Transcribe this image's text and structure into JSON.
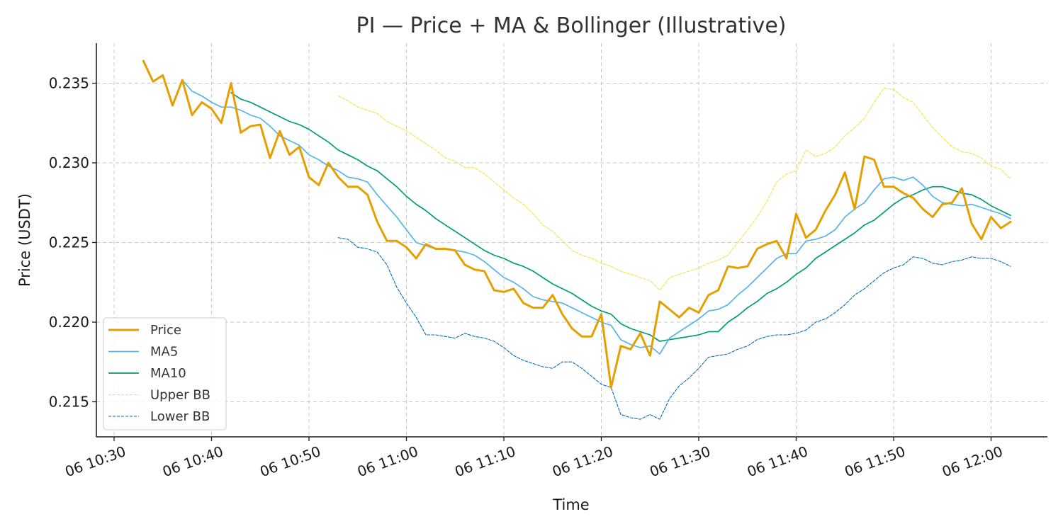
{
  "chart_data": {
    "type": "line",
    "title": "PI — Price + MA & Bollinger (Illustrative)",
    "xlabel": "Time",
    "ylabel": "Price (USDT)",
    "x_start": "06 10:30",
    "x_end": "06 12:00",
    "x_step_minutes": 1,
    "first_point": "06 10:33",
    "x_ticks": [
      "06 10:30",
      "06 10:40",
      "06 10:50",
      "06 11:00",
      "06 11:10",
      "06 11:20",
      "06 11:30",
      "06 11:40",
      "06 11:50",
      "06 12:00"
    ],
    "y_ticks": [
      "0.215",
      "0.220",
      "0.225",
      "0.230",
      "0.235"
    ],
    "ylim": [
      0.2128,
      0.2375
    ],
    "grid": true,
    "legend_position": "lower-left",
    "series": [
      {
        "name": "Price",
        "color": "#E69F00",
        "style": "solid-thick",
        "values": [
          0.2364,
          0.2351,
          0.2355,
          0.2336,
          0.2352,
          0.233,
          0.2338,
          0.2334,
          0.2325,
          0.235,
          0.2319,
          0.2323,
          0.2324,
          0.2303,
          0.232,
          0.2305,
          0.231,
          0.2291,
          0.2286,
          0.23,
          0.2291,
          0.2285,
          0.2285,
          0.228,
          0.2263,
          0.2251,
          0.2251,
          0.2247,
          0.224,
          0.2249,
          0.2246,
          0.2246,
          0.2245,
          0.2236,
          0.2233,
          0.2232,
          0.222,
          0.2219,
          0.2221,
          0.2212,
          0.2209,
          0.2209,
          0.2217,
          0.2205,
          0.2196,
          0.2191,
          0.2191,
          0.2205,
          0.2159,
          0.2185,
          0.2183,
          0.2193,
          0.2179,
          0.2213,
          0.2208,
          0.2203,
          0.2209,
          0.2206,
          0.2217,
          0.222,
          0.2235,
          0.2234,
          0.2235,
          0.2246,
          0.2249,
          0.2251,
          0.224,
          0.2268,
          0.2253,
          0.2258,
          0.227,
          0.228,
          0.2294,
          0.2271,
          0.2304,
          0.2302,
          0.2285,
          0.2285,
          0.2281,
          0.2278,
          0.2271,
          0.2266,
          0.2274,
          0.2275,
          0.2284,
          0.2262,
          0.2252,
          0.2266,
          0.2259,
          0.2263
        ]
      },
      {
        "name": "MA5",
        "color": "#56B4E9",
        "style": "solid",
        "values": [
          null,
          null,
          null,
          null,
          0.2352,
          0.2345,
          0.2342,
          0.2338,
          0.2335,
          0.2335,
          0.2333,
          0.233,
          0.2328,
          0.2323,
          0.2317,
          0.2314,
          0.2311,
          0.2305,
          0.2302,
          0.2298,
          0.2295,
          0.2291,
          0.229,
          0.2288,
          0.228,
          0.2273,
          0.2266,
          0.2258,
          0.225,
          0.2248,
          0.2246,
          0.2246,
          0.2245,
          0.2244,
          0.2242,
          0.2238,
          0.2233,
          0.2228,
          0.2225,
          0.2221,
          0.2216,
          0.2214,
          0.2213,
          0.2212,
          0.2209,
          0.2206,
          0.2203,
          0.22,
          0.2198,
          0.2189,
          0.2186,
          0.2184,
          0.2185,
          0.218,
          0.219,
          0.2194,
          0.2198,
          0.2202,
          0.2207,
          0.2208,
          0.2211,
          0.2217,
          0.2222,
          0.2228,
          0.2234,
          0.224,
          0.2243,
          0.2243,
          0.2251,
          0.2252,
          0.2254,
          0.2258,
          0.2266,
          0.2271,
          0.2275,
          0.2283,
          0.229,
          0.2291,
          0.2289,
          0.2291,
          0.2286,
          0.2279,
          0.2275,
          0.2274,
          0.2273,
          0.2274,
          0.2272,
          0.227,
          0.2268,
          0.2265
        ]
      },
      {
        "name": "MA10",
        "color": "#009E73",
        "style": "solid",
        "values": [
          null,
          null,
          null,
          null,
          null,
          null,
          null,
          null,
          null,
          0.2344,
          0.234,
          0.2338,
          0.2335,
          0.2332,
          0.2329,
          0.2326,
          0.2324,
          0.2321,
          0.2317,
          0.2313,
          0.2308,
          0.2305,
          0.2302,
          0.2298,
          0.2295,
          0.229,
          0.2285,
          0.2279,
          0.2274,
          0.227,
          0.2265,
          0.2261,
          0.2257,
          0.2253,
          0.2249,
          0.2245,
          0.2242,
          0.224,
          0.2237,
          0.2235,
          0.2232,
          0.2228,
          0.2224,
          0.2221,
          0.2218,
          0.2214,
          0.221,
          0.2207,
          0.2205,
          0.2199,
          0.2196,
          0.2194,
          0.2192,
          0.2188,
          0.2189,
          0.219,
          0.2191,
          0.2192,
          0.2194,
          0.2194,
          0.22,
          0.2204,
          0.2209,
          0.2213,
          0.2218,
          0.2221,
          0.2225,
          0.223,
          0.2234,
          0.224,
          0.2244,
          0.2248,
          0.2252,
          0.2256,
          0.2261,
          0.2264,
          0.2269,
          0.2274,
          0.2278,
          0.228,
          0.2283,
          0.2285,
          0.2285,
          0.2283,
          0.2281,
          0.228,
          0.2277,
          0.2273,
          0.227,
          0.2267
        ]
      },
      {
        "name": "Upper BB",
        "color": "#F0E442",
        "style": "dashed-thin",
        "values": [
          null,
          null,
          null,
          null,
          null,
          null,
          null,
          null,
          null,
          null,
          null,
          null,
          null,
          null,
          null,
          null,
          null,
          null,
          null,
          null,
          0.2342,
          0.2339,
          0.2335,
          0.2333,
          0.2331,
          0.2326,
          0.2323,
          0.232,
          0.2316,
          0.2312,
          0.2308,
          0.2303,
          0.2301,
          0.2297,
          0.2297,
          0.2293,
          0.2288,
          0.2283,
          0.2278,
          0.2274,
          0.2268,
          0.2261,
          0.2257,
          0.2251,
          0.2245,
          0.2242,
          0.224,
          0.2237,
          0.2235,
          0.2232,
          0.223,
          0.2228,
          0.2226,
          0.222,
          0.2228,
          0.223,
          0.2232,
          0.2234,
          0.2237,
          0.2239,
          0.2242,
          0.225,
          0.2258,
          0.2266,
          0.2276,
          0.2288,
          0.2293,
          0.2295,
          0.2308,
          0.2304,
          0.2306,
          0.231,
          0.2317,
          0.2322,
          0.2328,
          0.2338,
          0.2347,
          0.2346,
          0.2341,
          0.2338,
          0.233,
          0.2322,
          0.2316,
          0.231,
          0.2307,
          0.2306,
          0.2303,
          0.2298,
          0.2296,
          0.229
        ]
      },
      {
        "name": "Lower BB",
        "color": "#0072B2",
        "style": "dashed-thin",
        "values": [
          null,
          null,
          null,
          null,
          null,
          null,
          null,
          null,
          null,
          null,
          null,
          null,
          null,
          null,
          null,
          null,
          null,
          null,
          null,
          null,
          0.2253,
          0.2252,
          0.2247,
          0.2246,
          0.2244,
          0.2236,
          0.2222,
          0.2212,
          0.2203,
          0.2192,
          0.2192,
          0.2191,
          0.219,
          0.2193,
          0.2191,
          0.219,
          0.2188,
          0.2184,
          0.2179,
          0.2176,
          0.2174,
          0.2172,
          0.2171,
          0.2175,
          0.2175,
          0.2171,
          0.2166,
          0.2161,
          0.2159,
          0.2142,
          0.214,
          0.2139,
          0.2142,
          0.2139,
          0.2152,
          0.216,
          0.2165,
          0.2171,
          0.2178,
          0.2179,
          0.218,
          0.2183,
          0.2185,
          0.2189,
          0.2191,
          0.2192,
          0.2192,
          0.2193,
          0.2195,
          0.22,
          0.2202,
          0.2206,
          0.2211,
          0.2217,
          0.2221,
          0.2226,
          0.2231,
          0.2234,
          0.2236,
          0.2241,
          0.224,
          0.2237,
          0.2236,
          0.2238,
          0.2239,
          0.2241,
          0.224,
          0.224,
          0.2238,
          0.2235
        ]
      }
    ]
  }
}
